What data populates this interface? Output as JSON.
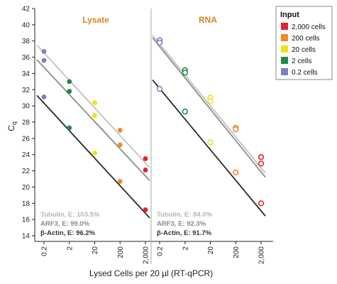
{
  "chart_data": {
    "type": "scatter",
    "ylabel": "C",
    "ylabel_sub": "q",
    "xlabel": "Lysed Cells per 20 µl (RT-qPCR)",
    "ylim": [
      13,
      42
    ],
    "y_ticks": [
      14,
      16,
      18,
      20,
      22,
      24,
      26,
      28,
      30,
      32,
      34,
      36,
      38,
      40,
      42
    ],
    "x_tick_labels": [
      "0.2",
      "2",
      "20",
      "200",
      "2,000"
    ],
    "x_scale": "log10",
    "legend": {
      "title": "Input",
      "placement": "top-right",
      "entries": [
        {
          "label": "2,000 cells",
          "color": "#e0252f"
        },
        {
          "label": "200 cells",
          "color": "#f08a2c"
        },
        {
          "label": "20 cells",
          "color": "#e8e51d"
        },
        {
          "label": "2 cells",
          "color": "#1e8a45"
        },
        {
          "label": "0.2 cells",
          "color": "#7e7fbf"
        }
      ]
    },
    "input_colors": {
      "2000": "#e0252f",
      "200": "#f08a2c",
      "20": "#e8e51d",
      "2": "#1e8a45",
      "0.2": "#7e7fbf"
    },
    "panels": [
      {
        "title": "Lysate",
        "marker": "filled",
        "series": [
          {
            "name": "Tubulin",
            "efficiency_label": "Tubulin, E: 103.5%",
            "line_color": "#c0c0c0",
            "points": [
              {
                "x": 0.2,
                "y": 36.7
              },
              {
                "x": 2,
                "y": 33.0
              },
              {
                "x": 20,
                "y": 30.4
              },
              {
                "x": 200,
                "y": 27.0
              },
              {
                "x": 2000,
                "y": 23.5
              }
            ],
            "fit": {
              "x0": 0.2,
              "y0": 37.4,
              "x1": 2000,
              "y1": 23.0
            }
          },
          {
            "name": "ARF3",
            "efficiency_label": "ARF3, E: 99.0%",
            "line_color": "#8c8c8c",
            "points": [
              {
                "x": 0.2,
                "y": 35.6
              },
              {
                "x": 2,
                "y": 31.8
              },
              {
                "x": 20,
                "y": 28.8
              },
              {
                "x": 200,
                "y": 25.2
              },
              {
                "x": 2000,
                "y": 22.1
              }
            ],
            "fit": {
              "x0": 0.2,
              "y0": 35.6,
              "x1": 2000,
              "y1": 21.4
            }
          },
          {
            "name": "β-Actin",
            "efficiency_label": "β-Actin, E: 96.2%",
            "line_color": "#2a2a2a",
            "points": [
              {
                "x": 0.2,
                "y": 31.1
              },
              {
                "x": 2,
                "y": 27.3
              },
              {
                "x": 20,
                "y": 24.2
              },
              {
                "x": 200,
                "y": 20.7
              },
              {
                "x": 2000,
                "y": 17.2
              }
            ],
            "fit": {
              "x0": 0.2,
              "y0": 31.2,
              "x1": 2000,
              "y1": 16.8
            }
          }
        ]
      },
      {
        "title": "RNA",
        "marker": "open",
        "series": [
          {
            "name": "Tubulin",
            "efficiency_label": "Tubulin, E: 84.0%",
            "line_color": "#c0c0c0",
            "points": [
              {
                "x": 0.2,
                "y": 38.1
              },
              {
                "x": 2,
                "y": 34.4
              },
              {
                "x": 20,
                "y": 31.0
              },
              {
                "x": 200,
                "y": 27.3
              },
              {
                "x": 2000,
                "y": 23.7
              }
            ],
            "fit": {
              "x0": 0.2,
              "y0": 38.6,
              "x1": 2000,
              "y1": 22.4
            }
          },
          {
            "name": "ARF3",
            "efficiency_label": "ARF3, E: 92.3%",
            "line_color": "#8c8c8c",
            "points": [
              {
                "x": 0.2,
                "y": 37.8
              },
              {
                "x": 2,
                "y": 34.1
              },
              {
                "x": 20,
                "y": 30.6
              },
              {
                "x": 200,
                "y": 27.1
              },
              {
                "x": 2000,
                "y": 22.9
              }
            ],
            "fit": {
              "x0": 0.2,
              "y0": 38.3,
              "x1": 2000,
              "y1": 21.9
            }
          },
          {
            "name": "β-Actin",
            "efficiency_label": "β-Actin, E: 91.7%",
            "line_color": "#2a2a2a",
            "points": [
              {
                "x": 0.2,
                "y": 32.1
              },
              {
                "x": 2,
                "y": 29.3
              },
              {
                "x": 20,
                "y": 25.5
              },
              {
                "x": 200,
                "y": 21.8
              },
              {
                "x": 2000,
                "y": 18.0
              }
            ],
            "fit": {
              "x0": 0.2,
              "y0": 33.1,
              "x1": 2000,
              "y1": 17.1
            }
          }
        ]
      }
    ]
  }
}
